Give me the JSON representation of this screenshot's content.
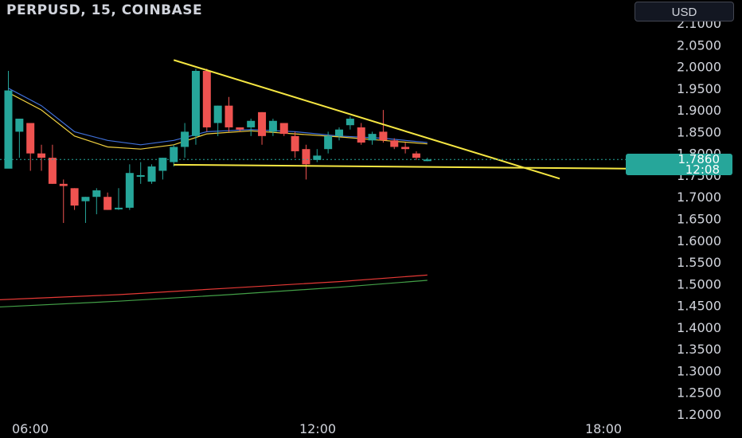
{
  "header": {
    "title": "PERPUSD, 15, COINBASE"
  },
  "currency_button": {
    "label": "USD"
  },
  "price_tag": {
    "price": "1.7860",
    "countdown": "12:08"
  },
  "colors": {
    "background": "#000000",
    "up": "#26a69a",
    "down": "#ef5350",
    "trendline": "#f5e642",
    "ma_blue": "#3f6fd8",
    "ma_yellow": "#f0d040",
    "ma_red": "#e53935",
    "ma_green": "#43a047",
    "axis_text": "#d1d4dc"
  },
  "chart_data": {
    "type": "candlestick",
    "title": "PERPUSD, 15, COINBASE",
    "y_axis": {
      "position": "right",
      "ylim": [
        1.18,
        2.13
      ],
      "ticks": [
        "2.1000",
        "2.0500",
        "2.0000",
        "1.9500",
        "1.9000",
        "1.8500",
        "1.8000",
        "1.7500",
        "1.7000",
        "1.6500",
        "1.6000",
        "1.5500",
        "1.5000",
        "1.4500",
        "1.4000",
        "1.3500",
        "1.3000",
        "1.2500",
        "1.2000"
      ]
    },
    "x_axis": {
      "ticks": [
        "06:00",
        "12:00",
        "18:00"
      ]
    },
    "last_price": 1.786,
    "candles": [
      {
        "o": 1.765,
        "h": 1.99,
        "l": 1.77,
        "c": 1.945
      },
      {
        "o": 1.85,
        "h": 1.88,
        "l": 1.79,
        "c": 1.88
      },
      {
        "o": 1.87,
        "h": 1.87,
        "l": 1.76,
        "c": 1.8
      },
      {
        "o": 1.8,
        "h": 1.82,
        "l": 1.76,
        "c": 1.79
      },
      {
        "o": 1.79,
        "h": 1.82,
        "l": 1.73,
        "c": 1.73
      },
      {
        "o": 1.73,
        "h": 1.74,
        "l": 1.64,
        "c": 1.725
      },
      {
        "o": 1.72,
        "h": 1.72,
        "l": 1.67,
        "c": 1.68
      },
      {
        "o": 1.69,
        "h": 1.7,
        "l": 1.64,
        "c": 1.7
      },
      {
        "o": 1.7,
        "h": 1.72,
        "l": 1.66,
        "c": 1.715
      },
      {
        "o": 1.7,
        "h": 1.71,
        "l": 1.67,
        "c": 1.67
      },
      {
        "o": 1.675,
        "h": 1.72,
        "l": 1.67,
        "c": 1.675
      },
      {
        "o": 1.675,
        "h": 1.775,
        "l": 1.67,
        "c": 1.755
      },
      {
        "o": 1.75,
        "h": 1.78,
        "l": 1.73,
        "c": 1.75
      },
      {
        "o": 1.735,
        "h": 1.775,
        "l": 1.73,
        "c": 1.77
      },
      {
        "o": 1.76,
        "h": 1.79,
        "l": 1.74,
        "c": 1.79
      },
      {
        "o": 1.78,
        "h": 1.82,
        "l": 1.77,
        "c": 1.815
      },
      {
        "o": 1.815,
        "h": 1.87,
        "l": 1.79,
        "c": 1.85
      },
      {
        "o": 1.84,
        "h": 1.995,
        "l": 1.82,
        "c": 1.99
      },
      {
        "o": 1.99,
        "h": 1.995,
        "l": 1.85,
        "c": 1.86
      },
      {
        "o": 1.87,
        "h": 1.91,
        "l": 1.84,
        "c": 1.91
      },
      {
        "o": 1.91,
        "h": 1.93,
        "l": 1.85,
        "c": 1.86
      },
      {
        "o": 1.86,
        "h": 1.86,
        "l": 1.85,
        "c": 1.855
      },
      {
        "o": 1.86,
        "h": 1.88,
        "l": 1.84,
        "c": 1.875
      },
      {
        "o": 1.895,
        "h": 1.895,
        "l": 1.82,
        "c": 1.84
      },
      {
        "o": 1.85,
        "h": 1.88,
        "l": 1.84,
        "c": 1.875
      },
      {
        "o": 1.87,
        "h": 1.87,
        "l": 1.84,
        "c": 1.845
      },
      {
        "o": 1.84,
        "h": 1.85,
        "l": 1.79,
        "c": 1.805
      },
      {
        "o": 1.81,
        "h": 1.82,
        "l": 1.74,
        "c": 1.775
      },
      {
        "o": 1.785,
        "h": 1.81,
        "l": 1.78,
        "c": 1.795
      },
      {
        "o": 1.81,
        "h": 1.85,
        "l": 1.8,
        "c": 1.84
      },
      {
        "o": 1.84,
        "h": 1.86,
        "l": 1.83,
        "c": 1.855
      },
      {
        "o": 1.865,
        "h": 1.885,
        "l": 1.855,
        "c": 1.88
      },
      {
        "o": 1.86,
        "h": 1.87,
        "l": 1.82,
        "c": 1.825
      },
      {
        "o": 1.83,
        "h": 1.85,
        "l": 1.82,
        "c": 1.845
      },
      {
        "o": 1.85,
        "h": 1.9,
        "l": 1.825,
        "c": 1.83
      },
      {
        "o": 1.83,
        "h": 1.835,
        "l": 1.81,
        "c": 1.815
      },
      {
        "o": 1.815,
        "h": 1.825,
        "l": 1.8,
        "c": 1.81
      },
      {
        "o": 1.8,
        "h": 1.805,
        "l": 1.785,
        "c": 1.79
      },
      {
        "o": 1.785,
        "h": 1.79,
        "l": 1.782,
        "c": 1.786
      }
    ],
    "moving_averages": [
      {
        "color": "#3f6fd8",
        "points": [
          {
            "i": 0,
            "v": 1.95
          },
          {
            "i": 3,
            "v": 1.91
          },
          {
            "i": 6,
            "v": 1.85
          },
          {
            "i": 9,
            "v": 1.83
          },
          {
            "i": 12,
            "v": 1.82
          },
          {
            "i": 15,
            "v": 1.83
          },
          {
            "i": 18,
            "v": 1.85
          },
          {
            "i": 22,
            "v": 1.855
          },
          {
            "i": 26,
            "v": 1.85
          },
          {
            "i": 30,
            "v": 1.84
          },
          {
            "i": 34,
            "v": 1.835
          },
          {
            "i": 38,
            "v": 1.825
          }
        ]
      },
      {
        "color": "#f0d040",
        "points": [
          {
            "i": 0,
            "v": 1.94
          },
          {
            "i": 3,
            "v": 1.9
          },
          {
            "i": 6,
            "v": 1.84
          },
          {
            "i": 9,
            "v": 1.815
          },
          {
            "i": 12,
            "v": 1.81
          },
          {
            "i": 15,
            "v": 1.82
          },
          {
            "i": 18,
            "v": 1.845
          },
          {
            "i": 22,
            "v": 1.852
          },
          {
            "i": 26,
            "v": 1.845
          },
          {
            "i": 30,
            "v": 1.838
          },
          {
            "i": 34,
            "v": 1.83
          },
          {
            "i": 38,
            "v": 1.822
          }
        ]
      },
      {
        "color": "#e53935",
        "points": [
          {
            "i": -2,
            "v": 1.462
          },
          {
            "i": 10,
            "v": 1.475
          },
          {
            "i": 20,
            "v": 1.49
          },
          {
            "i": 30,
            "v": 1.505
          },
          {
            "i": 38,
            "v": 1.52
          }
        ]
      },
      {
        "color": "#43a047",
        "points": [
          {
            "i": -2,
            "v": 1.445
          },
          {
            "i": 10,
            "v": 1.46
          },
          {
            "i": 20,
            "v": 1.475
          },
          {
            "i": 30,
            "v": 1.492
          },
          {
            "i": 38,
            "v": 1.508
          }
        ]
      }
    ],
    "trendlines": [
      {
        "from": {
          "i": 15,
          "v": 2.015
        },
        "to": {
          "i": 50,
          "v": 1.742
        }
      },
      {
        "from": {
          "i": 15,
          "v": 1.774
        },
        "to": {
          "i": 56,
          "v": 1.765
        }
      }
    ]
  }
}
